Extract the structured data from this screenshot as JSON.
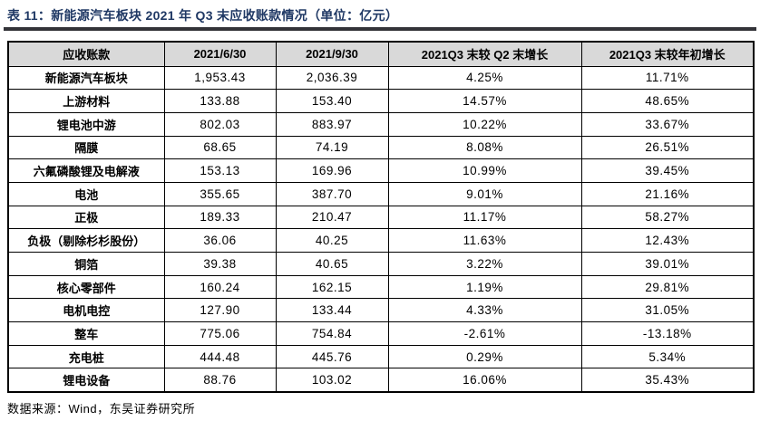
{
  "page": {
    "title": "表 11：新能源汽车板块 2021 年 Q3 末应收账款情况（单位：亿元）",
    "source_note": "数据来源：Wind，东吴证券研究所"
  },
  "colors": {
    "title_text": "#1F3864",
    "title_rule": "#333338",
    "header_bg": "#D9D9D9",
    "table_border": "#000000",
    "body_text": "#000000"
  },
  "chart_data": {
    "type": "table",
    "title": "表 11：新能源汽车板块 2021 年 Q3 末应收账款情况（单位：亿元）",
    "columns": [
      "应收账款",
      "2021/6/30",
      "2021/9/30",
      "2021Q3 末较 Q2 末增长",
      "2021Q3 末较年初增长"
    ],
    "rows": [
      [
        "新能源汽车板块",
        "1,953.43",
        "2,036.39",
        "4.25%",
        "11.71%"
      ],
      [
        "上游材料",
        "133.88",
        "153.40",
        "14.57%",
        "48.65%"
      ],
      [
        "锂电池中游",
        "802.03",
        "883.97",
        "10.22%",
        "33.67%"
      ],
      [
        "隔膜",
        "68.65",
        "74.19",
        "8.08%",
        "26.51%"
      ],
      [
        "六氟磷酸锂及电解液",
        "153.13",
        "169.96",
        "10.99%",
        "39.45%"
      ],
      [
        "电池",
        "355.65",
        "387.70",
        "9.01%",
        "21.16%"
      ],
      [
        "正极",
        "189.33",
        "210.47",
        "11.17%",
        "58.27%"
      ],
      [
        "负极（剔除杉杉股份）",
        "36.06",
        "40.25",
        "11.63%",
        "12.43%"
      ],
      [
        "铜箔",
        "39.38",
        "40.65",
        "3.22%",
        "39.01%"
      ],
      [
        "核心零部件",
        "160.24",
        "162.15",
        "1.19%",
        "29.81%"
      ],
      [
        "电机电控",
        "127.90",
        "133.44",
        "4.33%",
        "31.05%"
      ],
      [
        "整车",
        "775.06",
        "754.84",
        "-2.61%",
        "-13.18%"
      ],
      [
        "充电桩",
        "444.48",
        "445.76",
        "0.29%",
        "5.34%"
      ],
      [
        "锂电设备",
        "88.76",
        "103.02",
        "16.06%",
        "35.43%"
      ]
    ],
    "source": "数据来源：Wind，东吴证券研究所"
  }
}
